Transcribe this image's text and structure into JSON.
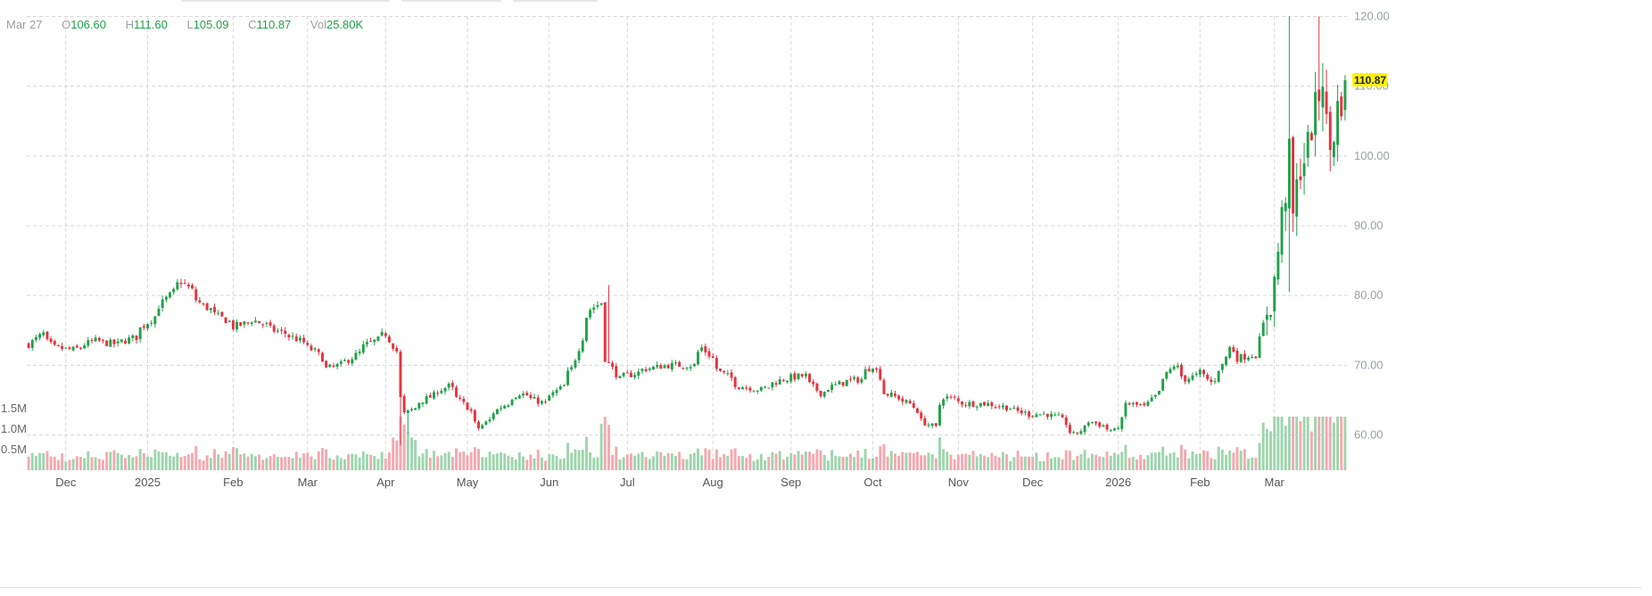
{
  "header": {
    "date": "Mar 27",
    "open_label": "O",
    "open": "106.60",
    "high_label": "H",
    "high": "111.60",
    "low_label": "L",
    "low": "105.09",
    "close_label": "C",
    "close": "110.87",
    "vol_label": "Vol",
    "vol": "25.80K"
  },
  "colors": {
    "up": "#22a04a",
    "down": "#e5333f",
    "vol_up": "#9ed5ad",
    "vol_down": "#f4a9b0",
    "grid": "#d8d8d8",
    "axis_text": "#9aa0a6",
    "last_price_bg": "#fff200"
  },
  "chart_data": {
    "type": "candlestick",
    "title": "",
    "last_price": "110.87",
    "y_axis": {
      "position": "right",
      "range": [
        57.5,
        121.5
      ],
      "ticks": [
        "60.00",
        "70.00",
        "80.00",
        "90.00",
        "100.00",
        "110.00",
        "120.00"
      ]
    },
    "volume_axis": {
      "ticks": [
        "0.5M",
        "1.0M",
        "1.5M"
      ]
    },
    "x_axis": {
      "labels": [
        "Dec",
        "2025",
        "Feb",
        "Mar",
        "Apr",
        "May",
        "Jun",
        "Jul",
        "Aug",
        "Sep",
        "Oct",
        "Nov",
        "Dec",
        "2026",
        "Feb",
        "Mar"
      ]
    },
    "grid": true,
    "close_anchors": [
      [
        "2024-11-18",
        73.0
      ],
      [
        "2024-11-22",
        74.5
      ],
      [
        "2024-11-27",
        72.5
      ],
      [
        "2024-12-04",
        72.2
      ],
      [
        "2024-12-12",
        73.5
      ],
      [
        "2024-12-20",
        73.0
      ],
      [
        "2024-12-27",
        74.0
      ],
      [
        "2025-01-03",
        77.0
      ],
      [
        "2025-01-10",
        80.5
      ],
      [
        "2025-01-14",
        82.0
      ],
      [
        "2025-01-22",
        78.5
      ],
      [
        "2025-02-03",
        75.5
      ],
      [
        "2025-02-10",
        76.5
      ],
      [
        "2025-02-18",
        75.0
      ],
      [
        "2025-02-25",
        74.0
      ],
      [
        "2025-03-05",
        72.0
      ],
      [
        "2025-03-10",
        69.5
      ],
      [
        "2025-03-17",
        70.5
      ],
      [
        "2025-03-25",
        73.0
      ],
      [
        "2025-04-01",
        74.5
      ],
      [
        "2025-04-04",
        72.0
      ],
      [
        "2025-04-08",
        63.0
      ],
      [
        "2025-04-15",
        65.0
      ],
      [
        "2025-04-24",
        67.0
      ],
      [
        "2025-05-01",
        64.0
      ],
      [
        "2025-05-06",
        61.0
      ],
      [
        "2025-05-14",
        64.0
      ],
      [
        "2025-05-21",
        66.0
      ],
      [
        "2025-05-30",
        64.5
      ],
      [
        "2025-06-06",
        67.0
      ],
      [
        "2025-06-10",
        69.5
      ],
      [
        "2025-06-13",
        74.0
      ],
      [
        "2025-06-17",
        78.0
      ],
      [
        "2025-06-20",
        79.0
      ],
      [
        "2025-06-23",
        71.0
      ],
      [
        "2025-06-27",
        68.0
      ],
      [
        "2025-07-08",
        69.5
      ],
      [
        "2025-07-16",
        70.0
      ],
      [
        "2025-07-25",
        70.0
      ],
      [
        "2025-07-29",
        72.5
      ],
      [
        "2025-08-05",
        69.0
      ],
      [
        "2025-08-12",
        67.0
      ],
      [
        "2025-08-20",
        66.5
      ],
      [
        "2025-08-28",
        68.0
      ],
      [
        "2025-09-05",
        68.5
      ],
      [
        "2025-09-11",
        66.0
      ],
      [
        "2025-09-19",
        67.5
      ],
      [
        "2025-09-26",
        68.0
      ],
      [
        "2025-10-01",
        70.0
      ],
      [
        "2025-10-06",
        66.0
      ],
      [
        "2025-10-15",
        64.5
      ],
      [
        "2025-10-20",
        62.0
      ],
      [
        "2025-10-24",
        61.0
      ],
      [
        "2025-10-28",
        65.5
      ],
      [
        "2025-11-05",
        64.5
      ],
      [
        "2025-11-12",
        64.5
      ],
      [
        "2025-11-20",
        64.0
      ],
      [
        "2025-11-28",
        63.0
      ],
      [
        "2025-12-05",
        63.0
      ],
      [
        "2025-12-10",
        62.5
      ],
      [
        "2025-12-16",
        60.0
      ],
      [
        "2025-12-22",
        62.0
      ],
      [
        "2025-12-31",
        60.5
      ],
      [
        "2026-01-05",
        64.5
      ],
      [
        "2026-01-12",
        64.0
      ],
      [
        "2026-01-16",
        66.0
      ],
      [
        "2026-01-22",
        70.0
      ],
      [
        "2026-01-27",
        68.0
      ],
      [
        "2026-02-02",
        69.0
      ],
      [
        "2026-02-05",
        67.5
      ],
      [
        "2026-02-10",
        70.0
      ],
      [
        "2026-02-12",
        72.5
      ],
      [
        "2026-02-16",
        71.0
      ],
      [
        "2026-02-20",
        71.5
      ],
      [
        "2026-02-23",
        71.5
      ],
      [
        "2026-02-26",
        78.0
      ],
      [
        "2026-03-02",
        82.0
      ],
      [
        "2026-03-04",
        91.0
      ],
      [
        "2026-03-06",
        99.5
      ],
      [
        "2026-03-09",
        91.0
      ],
      [
        "2026-03-11",
        99.0
      ],
      [
        "2026-03-13",
        101.0
      ],
      [
        "2026-03-17",
        106.0
      ],
      [
        "2026-03-19",
        112.0
      ],
      [
        "2026-03-20",
        104.0
      ],
      [
        "2026-03-23",
        101.0
      ],
      [
        "2026-03-25",
        106.6
      ],
      [
        "2026-03-27",
        110.87
      ]
    ],
    "last_candle": {
      "date": "2026-03-27",
      "open": 106.6,
      "high": 111.6,
      "low": 105.09,
      "close": 110.87,
      "volume": "25.80K"
    }
  }
}
